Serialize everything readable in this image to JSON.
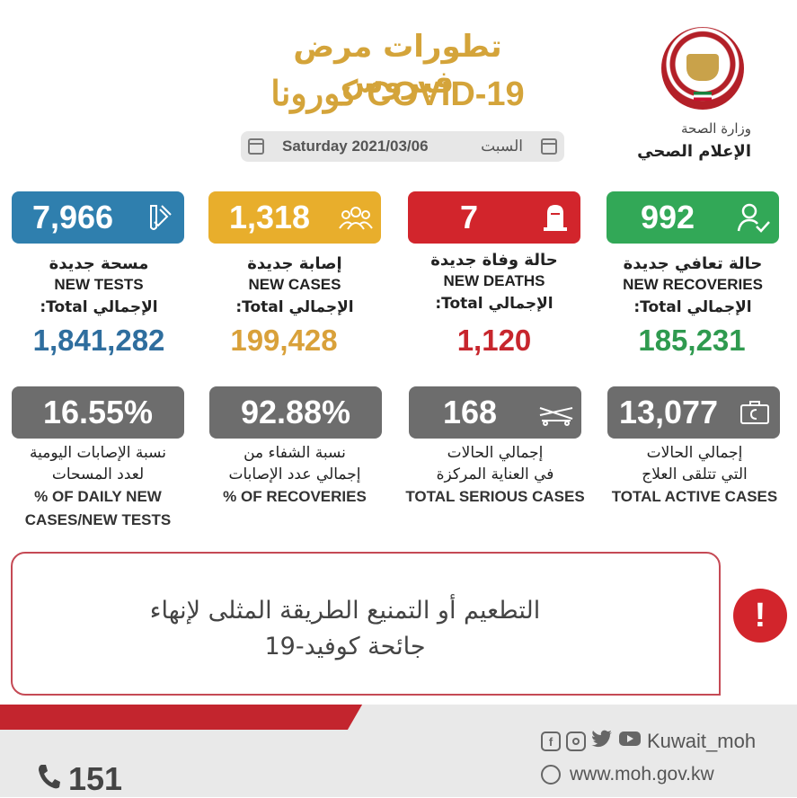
{
  "header": {
    "title_ar": "تطورات مرض فيروس",
    "title_en": "COVID-19 كورونا",
    "date_en": "Saturday 2021/03/06",
    "date_ar": "السبت",
    "ministry": "وزارة الصحة",
    "media": "الإعلام الصحي"
  },
  "top_stats": [
    {
      "key": "tests",
      "value": "7,966",
      "label_ar": "مسحة جديدة",
      "label_en": "NEW TESTS",
      "total_label": "الإجمالي Total:",
      "total": "1,841,282",
      "color": "#2f7fae",
      "total_color": "#2f6e9e",
      "icon": "test-tube-icon"
    },
    {
      "key": "cases",
      "value": "1,318",
      "label_ar": "إصابة جديدة",
      "label_en": "NEW CASES",
      "total_label": "الإجمالي Total:",
      "total": "199,428",
      "color": "#e8ae2c",
      "total_color": "#d9a13a",
      "icon": "people-icon"
    },
    {
      "key": "deaths",
      "value": "7",
      "label_ar": "حالة وفاة جديدة",
      "label_en": "NEW DEATHS",
      "total_label": "الإجمالي Total:",
      "total": "1,120",
      "color": "#d2252c",
      "total_color": "#c7262d",
      "icon": "tombstone-icon"
    },
    {
      "key": "recoveries",
      "value": "992",
      "label_ar": "حالة تعافي جديدة",
      "label_en": "NEW RECOVERIES",
      "total_label": "الإجمالي Total:",
      "total": "185,231",
      "color": "#32a857",
      "total_color": "#2f9a4f",
      "icon": "user-check-icon"
    }
  ],
  "bottom_stats": [
    {
      "key": "daily_pct",
      "value": "16.55%",
      "label_ar_1": "نسبة الإصابات اليومية",
      "label_ar_2": "لعدد المسحات",
      "label_en_1": "% OF DAILY NEW",
      "label_en_2": "CASES/NEW TESTS"
    },
    {
      "key": "recovery_pct",
      "value": "92.88%",
      "label_ar_1": "نسبة الشفاء من",
      "label_ar_2": "إجمالي عدد الإصابات",
      "label_en_1": "% OF RECOVERIES",
      "label_en_2": ""
    },
    {
      "key": "serious",
      "value": "168",
      "label_ar_1": "إجمالي الحالات",
      "label_ar_2": "في العناية المركزة",
      "label_en_1": "TOTAL SERIOUS CASES",
      "label_en_2": "",
      "icon": "hospital-bed-icon"
    },
    {
      "key": "active",
      "value": "13,077",
      "label_ar_1": "إجمالي الحالات",
      "label_ar_2": "التي تتلقى العلاج",
      "label_en_1": "TOTAL ACTIVE CASES",
      "label_en_2": "",
      "icon": "medical-kit-icon"
    }
  ],
  "message": {
    "line1": "التطعيم أو التمنيع الطريقة المثلى لإنهاء",
    "line2": "جائحة كوفيد-19"
  },
  "footer": {
    "hotline": "151",
    "handle": "Kuwait_moh",
    "website": "www.moh.gov.kw"
  }
}
